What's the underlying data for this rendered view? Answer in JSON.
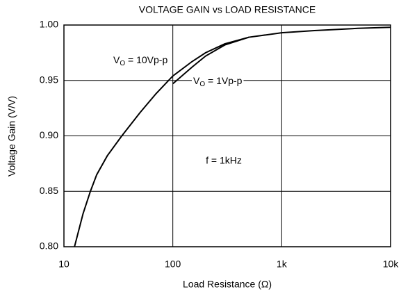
{
  "chart_data": {
    "type": "line",
    "title": "VOLTAGE GAIN vs LOAD RESISTANCE",
    "xlabel": "Load Resistance (Ω)",
    "ylabel": "Voltage Gain (V/V)",
    "xscale": "log",
    "grid": true,
    "color": "#000000",
    "xlim": [
      10,
      10000
    ],
    "ylim": [
      0.8,
      1.0
    ],
    "xticks": [
      10,
      100,
      {
        "value": 1000,
        "label": "1k"
      },
      {
        "value": 10000,
        "label": "10k"
      }
    ],
    "yticks": [
      {
        "value": 0.8,
        "label": "0.80"
      },
      {
        "value": 0.85,
        "label": "0.85"
      },
      {
        "value": 0.9,
        "label": "0.90"
      },
      {
        "value": 0.95,
        "label": "0.95"
      },
      {
        "value": 1.0,
        "label": "1.00"
      }
    ],
    "series": [
      {
        "name_parts": [
          "V",
          "O",
          " = 10Vp-p"
        ],
        "x": [
          12.5,
          15,
          17.5,
          20,
          25,
          34,
          50,
          70,
          100,
          150,
          200,
          300,
          500,
          1000,
          2000,
          5000,
          10000
        ],
        "values": [
          0.8,
          0.83,
          0.85,
          0.865,
          0.882,
          0.9,
          0.921,
          0.938,
          0.954,
          0.967,
          0.975,
          0.983,
          0.989,
          0.993,
          0.995,
          0.997,
          0.998
        ]
      },
      {
        "name_parts": [
          "V",
          "O",
          " = 1Vp-p"
        ],
        "x": [
          100,
          150,
          200,
          300,
          500
        ],
        "values": [
          0.947,
          0.962,
          0.972,
          0.982,
          0.989
        ]
      }
    ],
    "annotation": "f = 1kHz"
  }
}
